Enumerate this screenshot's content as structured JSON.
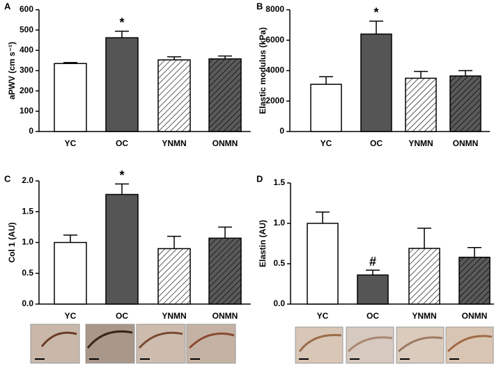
{
  "chart_data": [
    {
      "type": "bar",
      "panel": "A",
      "ylabel": "aPWV (cm s⁻¹)",
      "categories": [
        "YC",
        "OC",
        "YNMN",
        "ONMN"
      ],
      "values": [
        335,
        462,
        353,
        358
      ],
      "errors": [
        5,
        32,
        15,
        14
      ],
      "colors": [
        "#ffffff",
        "#555555",
        "#ffffff",
        "#5a5a5a"
      ],
      "hatch": [
        false,
        false,
        true,
        true
      ],
      "ylim": [
        0,
        600
      ],
      "yticks": [
        0,
        100,
        200,
        300,
        400,
        500,
        600
      ],
      "annotations": [
        {
          "text": "*",
          "category": "OC"
        }
      ]
    },
    {
      "type": "bar",
      "panel": "B",
      "ylabel": "Elastic modulus (kPa)",
      "categories": [
        "YC",
        "OC",
        "YNMN",
        "ONMN"
      ],
      "values": [
        3100,
        6400,
        3500,
        3650
      ],
      "errors": [
        500,
        850,
        450,
        350
      ],
      "colors": [
        "#ffffff",
        "#555555",
        "#ffffff",
        "#5a5a5a"
      ],
      "hatch": [
        false,
        false,
        true,
        true
      ],
      "ylim": [
        0,
        8000
      ],
      "yticks": [
        0,
        2000,
        4000,
        6000,
        8000
      ],
      "annotations": [
        {
          "text": "*",
          "category": "OC"
        }
      ]
    },
    {
      "type": "bar",
      "panel": "C",
      "ylabel": "Col 1 (AU)",
      "categories": [
        "YC",
        "OC",
        "YNMN",
        "ONMN"
      ],
      "values": [
        1.0,
        1.78,
        0.9,
        1.07
      ],
      "errors": [
        0.12,
        0.17,
        0.2,
        0.18
      ],
      "colors": [
        "#ffffff",
        "#555555",
        "#ffffff",
        "#5a5a5a"
      ],
      "hatch": [
        false,
        false,
        true,
        true
      ],
      "ylim": [
        0,
        2
      ],
      "yticks": [
        {
          "value": 0,
          "label": "0.0"
        },
        0.5,
        {
          "value": 1,
          "label": "1.0"
        },
        1.5,
        {
          "value": 2,
          "label": "2.0"
        }
      ],
      "annotations": [
        {
          "text": "*",
          "category": "OC"
        }
      ]
    },
    {
      "type": "bar",
      "panel": "D",
      "ylabel": "Elastin (AU)",
      "categories": [
        "YC",
        "OC",
        "YNMN",
        "ONMN"
      ],
      "values": [
        1.0,
        0.36,
        0.69,
        0.58
      ],
      "errors": [
        0.14,
        0.06,
        0.25,
        0.12
      ],
      "colors": [
        "#ffffff",
        "#555555",
        "#ffffff",
        "#5a5a5a"
      ],
      "hatch": [
        false,
        false,
        true,
        true
      ],
      "ylim": [
        0,
        1.5
      ],
      "yticks": [
        {
          "value": 0,
          "label": "0.0"
        },
        0.5,
        {
          "value": 1,
          "label": "1.0"
        },
        1.5
      ],
      "annotations": [
        {
          "text": "#",
          "category": "OC"
        }
      ]
    }
  ]
}
